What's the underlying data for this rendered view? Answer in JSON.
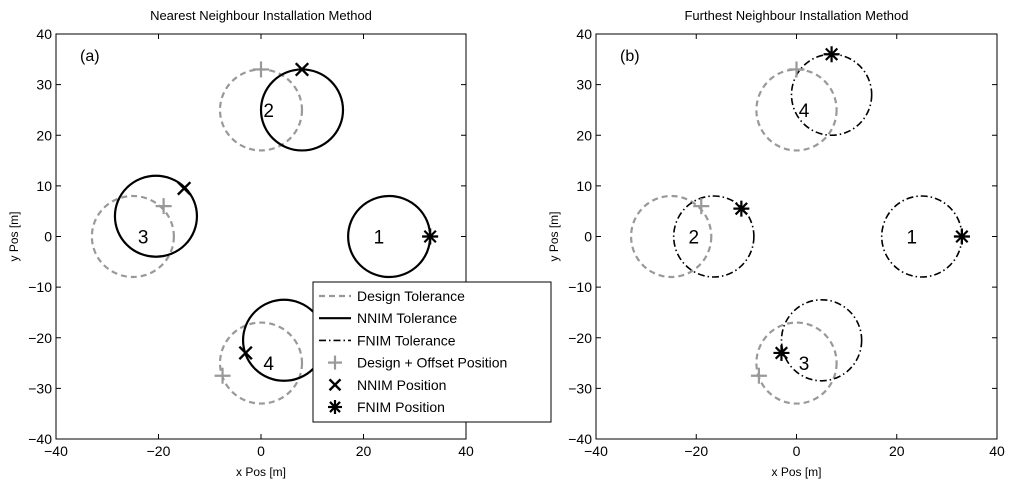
{
  "chart_data": [
    {
      "type": "scatter",
      "title": "Nearest Neighbour Installation Method",
      "panel_label": "(a)",
      "xlabel": "x Pos [m]",
      "ylabel": "y Pos [m]",
      "xlim": [
        -40,
        40
      ],
      "ylim": [
        -40,
        40
      ],
      "xticks": [
        -40,
        -20,
        0,
        20,
        40
      ],
      "yticks": [
        -40,
        -30,
        -20,
        -10,
        0,
        10,
        20,
        30,
        40
      ],
      "xtick_labels": [
        "−40",
        "−20",
        "0",
        "20",
        "40"
      ],
      "ytick_labels": [
        "−40",
        "−30",
        "−20",
        "−10",
        "0",
        "10",
        "20",
        "30",
        "40"
      ],
      "grid": false,
      "legend": {
        "position": "lower-right",
        "entries": [
          {
            "label": "Design Tolerance",
            "style": "design"
          },
          {
            "label": "NNIM Tolerance",
            "style": "nnim"
          },
          {
            "label": "FNIM Tolerance",
            "style": "fnim"
          },
          {
            "label": "Design + Offset Position",
            "style": "plus"
          },
          {
            "label": "NNIM Position",
            "style": "cross"
          },
          {
            "label": "FNIM Position",
            "style": "star"
          }
        ]
      },
      "circles": [
        {
          "series": "Design Tolerance",
          "cx": 0,
          "cy": 25,
          "r": 8
        },
        {
          "series": "Design Tolerance",
          "cx": -25,
          "cy": 0,
          "r": 8
        },
        {
          "series": "Design Tolerance",
          "cx": 0,
          "cy": -25,
          "r": 8
        },
        {
          "series": "NNIM Tolerance",
          "cx": 8,
          "cy": 25,
          "r": 8
        },
        {
          "series": "NNIM Tolerance",
          "cx": -20.5,
          "cy": 4,
          "r": 8
        },
        {
          "series": "NNIM Tolerance",
          "cx": 25,
          "cy": 0,
          "r": 8
        },
        {
          "series": "NNIM Tolerance",
          "cx": 4.5,
          "cy": -20.5,
          "r": 8
        }
      ],
      "markers": [
        {
          "series": "Design + Offset Position",
          "shape": "plus",
          "x": 0,
          "y": 33
        },
        {
          "series": "Design + Offset Position",
          "shape": "plus",
          "x": -19,
          "y": 6
        },
        {
          "series": "Design + Offset Position",
          "shape": "plus",
          "x": -7.5,
          "y": -27.5
        },
        {
          "series": "Design + Offset Position",
          "shape": "plus",
          "x": 33,
          "y": 0
        },
        {
          "series": "NNIM Position",
          "shape": "cross",
          "x": 8,
          "y": 33
        },
        {
          "series": "NNIM Position",
          "shape": "cross",
          "x": -15,
          "y": 9.5
        },
        {
          "series": "NNIM Position",
          "shape": "cross",
          "x": -3,
          "y": -23
        },
        {
          "series": "FNIM Position",
          "shape": "star",
          "x": 33,
          "y": 0
        }
      ],
      "labels": [
        {
          "text": "1",
          "x": 23,
          "y": 0
        },
        {
          "text": "2",
          "x": 1.5,
          "y": 25
        },
        {
          "text": "3",
          "x": -23,
          "y": 0
        },
        {
          "text": "4",
          "x": 1.5,
          "y": -25
        }
      ]
    },
    {
      "type": "scatter",
      "title": "Furthest Neighbour Installation Method",
      "panel_label": "(b)",
      "xlabel": "x Pos [m]",
      "ylabel": "y Pos [m]",
      "xlim": [
        -40,
        40
      ],
      "ylim": [
        -40,
        40
      ],
      "xticks": [
        -40,
        -20,
        0,
        20,
        40
      ],
      "yticks": [
        -40,
        -30,
        -20,
        -10,
        0,
        10,
        20,
        30,
        40
      ],
      "xtick_labels": [
        "−40",
        "−20",
        "0",
        "20",
        "40"
      ],
      "ytick_labels": [
        "−40",
        "−30",
        "−20",
        "−10",
        "0",
        "10",
        "20",
        "30",
        "40"
      ],
      "grid": false,
      "circles": [
        {
          "series": "Design Tolerance",
          "cx": 0,
          "cy": 25,
          "r": 8
        },
        {
          "series": "Design Tolerance",
          "cx": -25,
          "cy": 0,
          "r": 8
        },
        {
          "series": "Design Tolerance",
          "cx": 0,
          "cy": -25,
          "r": 8
        },
        {
          "series": "FNIM Tolerance",
          "cx": 7,
          "cy": 28,
          "r": 8
        },
        {
          "series": "FNIM Tolerance",
          "cx": -16.5,
          "cy": 0,
          "r": 8
        },
        {
          "series": "FNIM Tolerance",
          "cx": 25,
          "cy": 0,
          "r": 8
        },
        {
          "series": "FNIM Tolerance",
          "cx": 5,
          "cy": -20.5,
          "r": 8
        }
      ],
      "markers": [
        {
          "series": "Design + Offset Position",
          "shape": "plus",
          "x": 0,
          "y": 33
        },
        {
          "series": "Design + Offset Position",
          "shape": "plus",
          "x": -19,
          "y": 6
        },
        {
          "series": "Design + Offset Position",
          "shape": "plus",
          "x": -7.5,
          "y": -27.5
        },
        {
          "series": "Design + Offset Position",
          "shape": "plus",
          "x": 33,
          "y": 0
        },
        {
          "series": "FNIM Position",
          "shape": "star",
          "x": 7,
          "y": 36
        },
        {
          "series": "FNIM Position",
          "shape": "star",
          "x": -11,
          "y": 5.5
        },
        {
          "series": "FNIM Position",
          "shape": "star",
          "x": -3,
          "y": -23
        },
        {
          "series": "FNIM Position",
          "shape": "star",
          "x": 33,
          "y": 0
        }
      ],
      "labels": [
        {
          "text": "4",
          "x": 1.5,
          "y": 25
        },
        {
          "text": "2",
          "x": -20.5,
          "y": 0
        },
        {
          "text": "1",
          "x": 23,
          "y": 0
        },
        {
          "text": "3",
          "x": 1.5,
          "y": -25
        }
      ]
    }
  ]
}
